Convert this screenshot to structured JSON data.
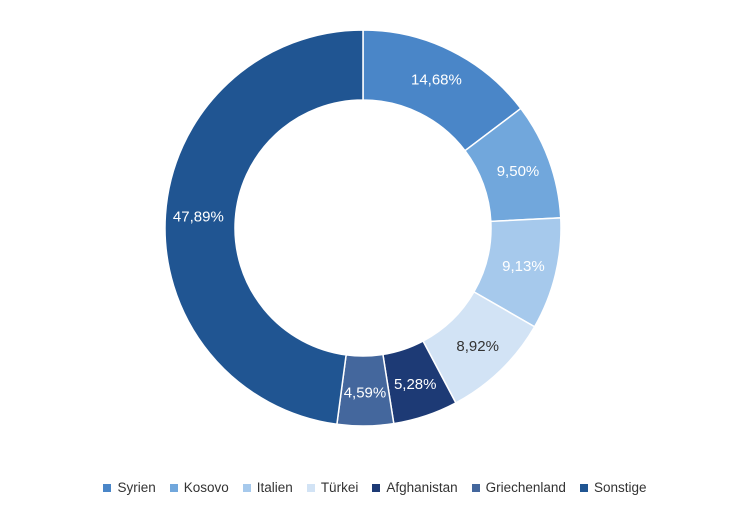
{
  "chart_data": {
    "type": "donut",
    "title": "",
    "slices": [
      {
        "label": "Syrien",
        "value": 14.68,
        "value_label": "14,68%",
        "color": "#4a86c8",
        "label_color": "#ffffff"
      },
      {
        "label": "Kosovo",
        "value": 9.5,
        "value_label": "9,50%",
        "color": "#71a7dc",
        "label_color": "#ffffff"
      },
      {
        "label": "Italien",
        "value": 9.13,
        "value_label": "9,13%",
        "color": "#a6c9ec",
        "label_color": "#ffffff"
      },
      {
        "label": "Türkei",
        "value": 8.92,
        "value_label": "8,92%",
        "color": "#d2e3f5",
        "label_color": "#333333"
      },
      {
        "label": "Afghanistan",
        "value": 5.28,
        "value_label": "5,28%",
        "color": "#1d3a75",
        "label_color": "#ffffff"
      },
      {
        "label": "Griechenland",
        "value": 4.59,
        "value_label": "4,59%",
        "color": "#44679d",
        "label_color": "#ffffff"
      },
      {
        "label": "Sonstige",
        "value": 47.89,
        "value_label": "47,89%",
        "color": "#205592",
        "label_color": "#ffffff"
      }
    ],
    "start_angle_deg": 0,
    "direction": "clockwise",
    "legend_position": "bottom"
  }
}
